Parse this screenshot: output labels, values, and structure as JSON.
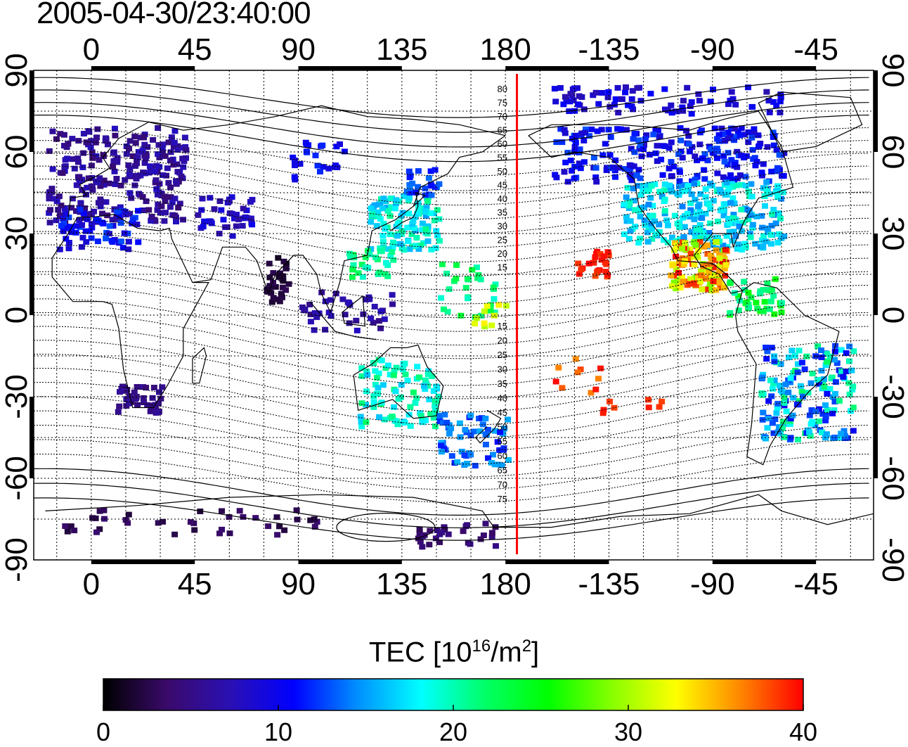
{
  "title": "2005-04-30/23:40:00",
  "map": {
    "top_lon_labels": [
      "0",
      "45",
      "90",
      "135",
      "180",
      "-135",
      "-90",
      "-45"
    ],
    "bottom_lon_labels": [
      "0",
      "45",
      "90",
      "135",
      "180",
      "-135",
      "-90",
      "-45"
    ],
    "left_lat_labels": [
      "90",
      "60",
      "30",
      "0",
      "-30",
      "-60",
      "-90"
    ],
    "right_lat_labels": [
      "90",
      "60",
      "30",
      "0",
      "-30",
      "-60",
      "-90"
    ],
    "lon_ticks": [
      0,
      45,
      90,
      135,
      180,
      225,
      270,
      315
    ],
    "lat_ticks": [
      90,
      60,
      30,
      0,
      -30,
      -60,
      -90
    ],
    "lon_range": [
      -25,
      340
    ],
    "lat_range": [
      -90,
      90
    ],
    "terminator_lon": 185,
    "terminator_color": "#ff0000",
    "contour_labels_north": [
      "80",
      "75",
      "70",
      "65",
      "60",
      "55",
      "50",
      "45",
      "40",
      "35",
      "30",
      "25",
      "20",
      "15"
    ],
    "contour_labels_south": [
      "15",
      "20",
      "25",
      "30",
      "35",
      "40",
      "45",
      "50",
      "55",
      "60",
      "65",
      "70",
      "75"
    ]
  },
  "colorbar": {
    "title_main": "TEC  [10",
    "title_sup1": "16",
    "title_mid": "/m",
    "title_sup2": "2",
    "title_end": "]",
    "min": 0,
    "max": 40,
    "tick_values": [
      0,
      10,
      20,
      30,
      40
    ],
    "tick_labels": [
      "0",
      "10",
      "20",
      "30",
      "40"
    ],
    "colors": [
      "#000000",
      "#3a0a6a",
      "#2a10b4",
      "#0000ff",
      "#0090ff",
      "#00ffff",
      "#00ff66",
      "#00ff00",
      "#88ff00",
      "#ffff00",
      "#ff8800",
      "#ff0000"
    ]
  }
}
